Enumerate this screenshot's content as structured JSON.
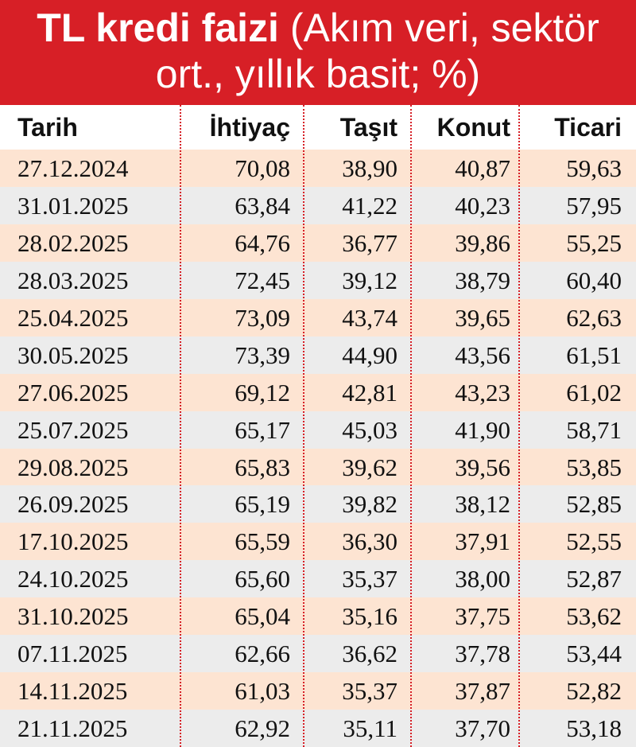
{
  "header": {
    "title": "TL kredi faizi",
    "subtitle": "(Akım veri, sektör ort., yıllık basit; %)"
  },
  "table": {
    "columns": [
      "Tarih",
      "İhtiyaç",
      "Taşıt",
      "Konut",
      "Ticari"
    ],
    "rows": [
      [
        "27.12.2024",
        "70,08",
        "38,90",
        "40,87",
        "59,63"
      ],
      [
        "31.01.2025",
        "63,84",
        "41,22",
        "40,23",
        "57,95"
      ],
      [
        "28.02.2025",
        "64,76",
        "36,77",
        "39,86",
        "55,25"
      ],
      [
        "28.03.2025",
        "72,45",
        "39,12",
        "38,79",
        "60,40"
      ],
      [
        "25.04.2025",
        "73,09",
        "43,74",
        "39,65",
        "62,63"
      ],
      [
        "30.05.2025",
        "73,39",
        "44,90",
        "43,56",
        "61,51"
      ],
      [
        "27.06.2025",
        "69,12",
        "42,81",
        "43,23",
        "61,02"
      ],
      [
        "25.07.2025",
        "65,17",
        "45,03",
        "41,90",
        "58,71"
      ],
      [
        "29.08.2025",
        "65,83",
        "39,62",
        "39,56",
        "53,85"
      ],
      [
        "26.09.2025",
        "65,19",
        "39,82",
        "38,12",
        "52,85"
      ],
      [
        "17.10.2025",
        "65,59",
        "36,30",
        "37,91",
        "52,55"
      ],
      [
        "24.10.2025",
        "65,60",
        "35,37",
        "38,00",
        "52,87"
      ],
      [
        "31.10.2025",
        "65,04",
        "35,16",
        "37,75",
        "53,62"
      ],
      [
        "07.11.2025",
        "62,66",
        "36,62",
        "37,78",
        "53,44"
      ],
      [
        "14.11.2025",
        "61,03",
        "35,37",
        "37,87",
        "52,82"
      ],
      [
        "21.11.2025",
        "62,92",
        "35,11",
        "37,70",
        "53,18"
      ]
    ]
  }
}
